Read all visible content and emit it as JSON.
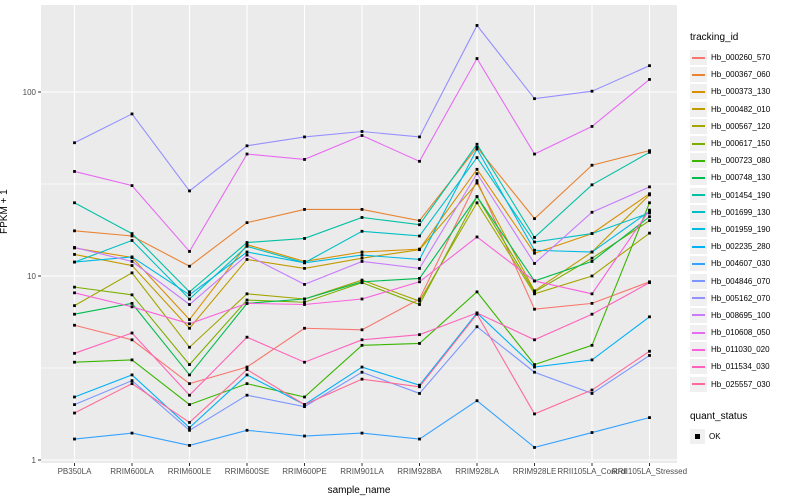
{
  "legend": {
    "tracking_title": "tracking_id",
    "quant_title": "quant_status",
    "quant_value": "OK",
    "quant_marker": "black-square"
  },
  "colors": {
    "panel_background": "#EBEBEB",
    "grid": "#FFFFFF",
    "tick_text": "#4D4D4D",
    "axis_title_text": "#000000",
    "point_marker": "#000000",
    "legend_key_background": "#F0F0F0"
  },
  "chart_data": {
    "type": "line",
    "title": "",
    "xlabel": "sample_name",
    "ylabel": "FPKM + 1",
    "y_scale": "log10",
    "ylim": [
      1,
      300
    ],
    "y_major_ticks": [
      1,
      10,
      100
    ],
    "y_tick_labels": [
      "1",
      "10",
      "100"
    ],
    "y_minor_gridlines": [
      3.162,
      31.62
    ],
    "grid": "on",
    "legend_position": "right",
    "marker": "small-black-square",
    "categories": [
      "PB350LA",
      "RRIM600LA",
      "RRIM600LE",
      "RRIM600SE",
      "RRIM600PE",
      "RRIM901LA",
      "RRIM928BA",
      "RRIM928LA",
      "RRIM928LE",
      "RRII105LA_Control",
      "RRII105LA_Stressed"
    ],
    "series": [
      {
        "name": "Hb_000260_570",
        "color": "#F8766D",
        "values": [
          5.4,
          4.5,
          2.6,
          3.2,
          5.2,
          5.1,
          7.5,
          33,
          6.6,
          7.1,
          9.3
        ]
      },
      {
        "name": "Hb_000367_060",
        "color": "#EA8331",
        "values": [
          17.6,
          16.5,
          11.3,
          19.5,
          23,
          23,
          20,
          50,
          20.5,
          40,
          48
        ]
      },
      {
        "name": "Hb_000373_130",
        "color": "#D89000",
        "values": [
          14.2,
          12.6,
          5.8,
          14.8,
          12,
          13.5,
          14,
          38,
          13.3,
          17,
          28
        ]
      },
      {
        "name": "Hb_000482_010",
        "color": "#C09B00",
        "values": [
          13.1,
          11.4,
          5.2,
          12.3,
          11,
          12.5,
          13.9,
          32,
          8.3,
          13.5,
          27.6
        ]
      },
      {
        "name": "Hb_000567_120",
        "color": "#A3A500",
        "values": [
          6.9,
          10.4,
          4.1,
          8.0,
          7.5,
          9.5,
          7.3,
          25,
          8.0,
          10,
          17.1
        ]
      },
      {
        "name": "Hb_000617_150",
        "color": "#7CAE00",
        "values": [
          8.7,
          7.9,
          3.3,
          7.4,
          7.2,
          9.2,
          7.0,
          27,
          8.2,
          12.5,
          20
        ]
      },
      {
        "name": "Hb_000723_080",
        "color": "#39B600",
        "values": [
          3.4,
          3.5,
          2.0,
          2.6,
          2.2,
          4.2,
          4.3,
          8.2,
          3.3,
          4.2,
          25
        ]
      },
      {
        "name": "Hb_000748_130",
        "color": "#00BB4E",
        "values": [
          6.2,
          7.1,
          2.9,
          7.1,
          7.5,
          9.3,
          9.7,
          27,
          9.4,
          12,
          21
        ]
      },
      {
        "name": "Hb_001454_190",
        "color": "#00C1A3",
        "values": [
          25,
          17,
          8.2,
          15.2,
          16,
          20.8,
          19,
          52,
          16.2,
          31.3,
          47
        ]
      },
      {
        "name": "Hb_001699_130",
        "color": "#00BFC4",
        "values": [
          11.9,
          15.6,
          7.5,
          14.5,
          11.8,
          17.5,
          16.5,
          44,
          15.3,
          17,
          22
        ]
      },
      {
        "name": "Hb_001959_190",
        "color": "#00BAE0",
        "values": [
          11.9,
          12.7,
          7.9,
          13.5,
          11.8,
          13.0,
          12.3,
          49,
          13.8,
          13.5,
          22.5
        ]
      },
      {
        "name": "Hb_002235_280",
        "color": "#00B0F6",
        "values": [
          2.2,
          2.9,
          1.5,
          2.9,
          2.0,
          3.2,
          2.55,
          6.3,
          3.2,
          3.5,
          6.0
        ]
      },
      {
        "name": "Hb_004607_030",
        "color": "#35A2FF",
        "values": [
          1.3,
          1.4,
          1.2,
          1.45,
          1.35,
          1.4,
          1.3,
          2.1,
          1.17,
          1.41,
          1.7
        ]
      },
      {
        "name": "Hb_004846_070",
        "color": "#7C96FF",
        "values": [
          2.0,
          2.7,
          1.45,
          2.25,
          1.95,
          3.0,
          2.3,
          5.3,
          3.0,
          2.3,
          3.7
        ]
      },
      {
        "name": "Hb_005162_070",
        "color": "#9590FF",
        "values": [
          53,
          76,
          29,
          51,
          57,
          61,
          57,
          230,
          92,
          101,
          139
        ]
      },
      {
        "name": "Hb_008695_100",
        "color": "#C77CFF",
        "values": [
          14.3,
          12.0,
          7.0,
          13.0,
          9.0,
          12.0,
          11,
          36,
          11.7,
          22.2,
          30.5
        ]
      },
      {
        "name": "Hb_010608_050",
        "color": "#E76BF3",
        "values": [
          37,
          31,
          13.6,
          46,
          43,
          58,
          42,
          152,
          46,
          65,
          117
        ]
      },
      {
        "name": "Hb_011030_020",
        "color": "#FA62DB",
        "values": [
          8.1,
          6.8,
          5.5,
          7.1,
          7.0,
          7.5,
          9.3,
          16.3,
          9.4,
          8.0,
          22.8
        ]
      },
      {
        "name": "Hb_011534_030",
        "color": "#FF62BC",
        "values": [
          3.8,
          4.9,
          2.25,
          4.65,
          3.4,
          4.5,
          4.8,
          6.3,
          4.5,
          6.2,
          9.2
        ]
      },
      {
        "name": "Hb_025557_030",
        "color": "#FF6A98",
        "values": [
          1.8,
          2.6,
          1.6,
          3.1,
          2.0,
          2.75,
          2.5,
          6.2,
          1.78,
          2.4,
          3.9
        ]
      }
    ]
  }
}
